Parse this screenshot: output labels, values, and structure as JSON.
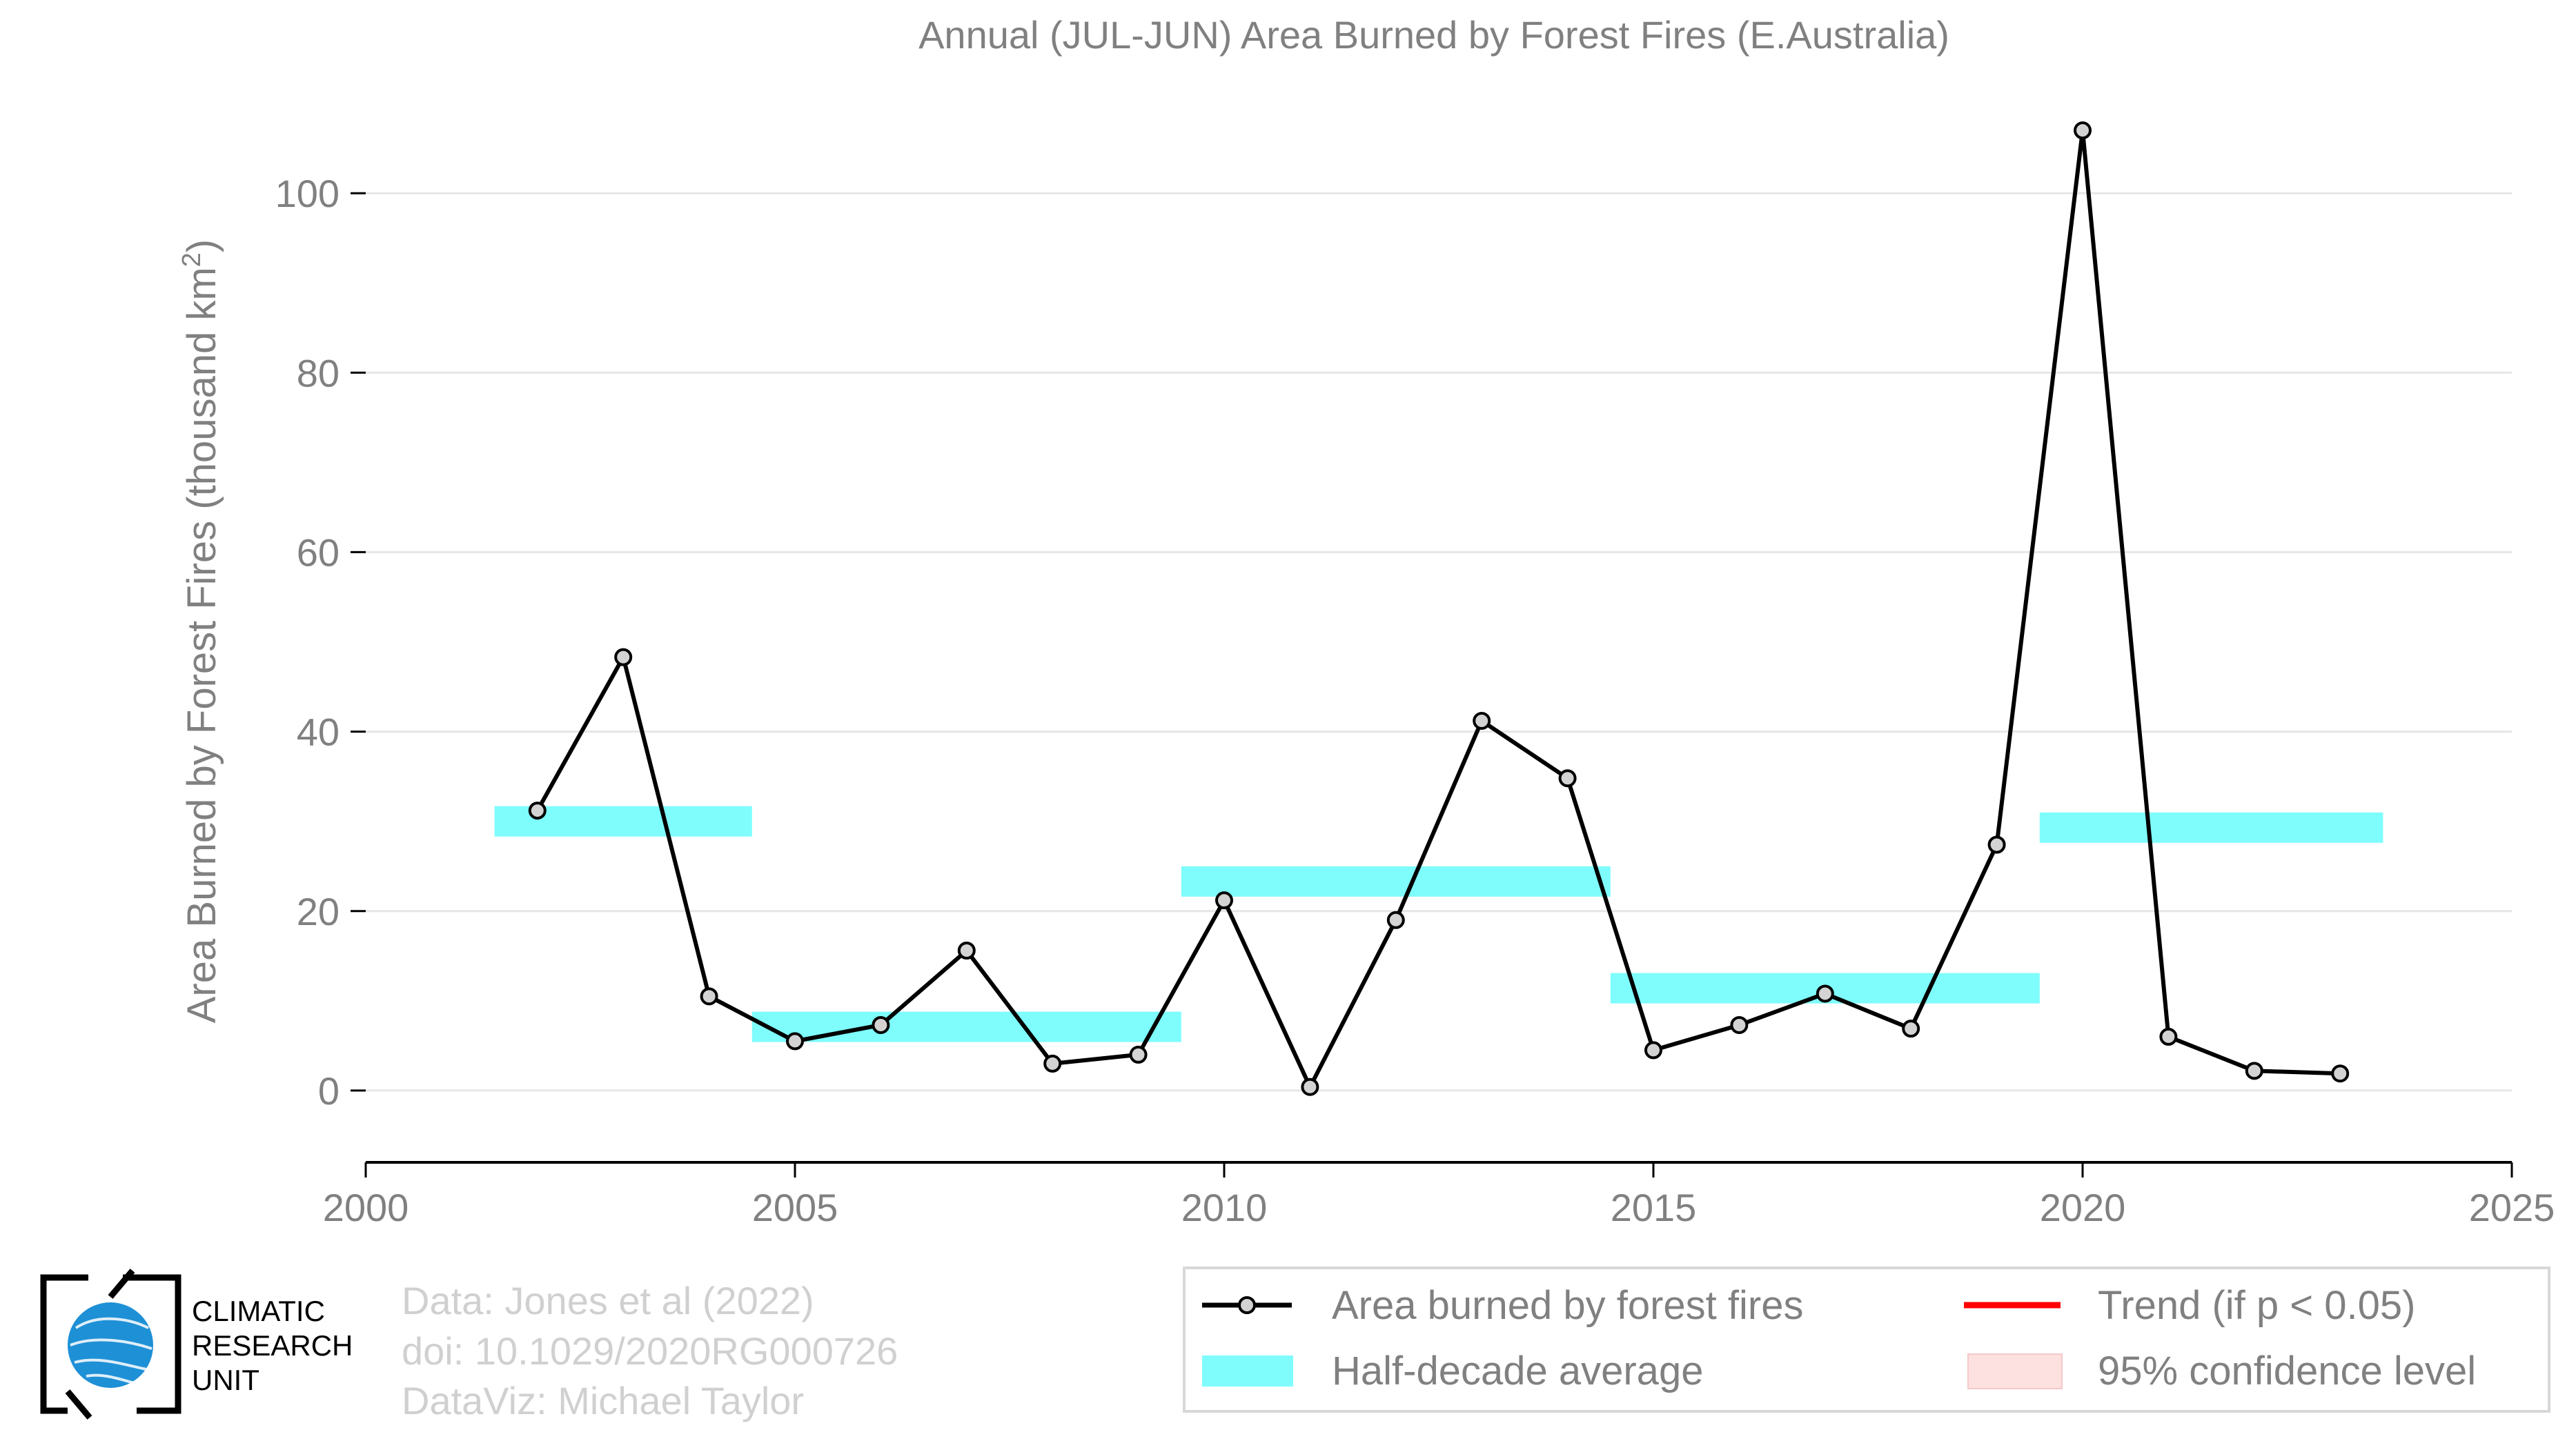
{
  "chart_data": {
    "type": "line",
    "title": "Annual (JUL-JUN) Area Burned by Forest Fires (E.Australia)",
    "ylabel": "Area Burned by Forest Fires (thousand km",
    "ylabel_sup": "2",
    "ylabel_close": ")",
    "xlabel": "",
    "xlim": [
      2000,
      2025
    ],
    "ylim": [
      -8,
      110
    ],
    "xticks": [
      2000,
      2005,
      2010,
      2015,
      2020,
      2025
    ],
    "yticks": [
      0,
      20,
      40,
      60,
      80,
      100
    ],
    "grid": "horizontal",
    "legend_position": "bottom-right",
    "series": [
      {
        "name": "Area burned by forest fires",
        "style": "line-markers",
        "color": "#000000",
        "marker_fill": "#d3d3d3",
        "x": [
          2002,
          2003,
          2004,
          2005,
          2006,
          2007,
          2008,
          2009,
          2010,
          2011,
          2012,
          2013,
          2014,
          2015,
          2016,
          2017,
          2018,
          2019,
          2020,
          2021,
          2022,
          2023
        ],
        "y": [
          31.2,
          48.3,
          10.5,
          5.5,
          7.3,
          15.6,
          3.0,
          4.0,
          21.2,
          0.4,
          19.0,
          41.2,
          34.8,
          4.5,
          7.3,
          10.8,
          6.9,
          27.4,
          107.0,
          6.0,
          2.2,
          1.9
        ]
      },
      {
        "name": "Half-decade average",
        "style": "bands",
        "color": "#7ffdfd",
        "segments": [
          {
            "x0": 2001.5,
            "x1": 2004.5,
            "y": 30.0
          },
          {
            "x0": 2004.5,
            "x1": 2009.5,
            "y": 7.1
          },
          {
            "x0": 2009.5,
            "x1": 2014.5,
            "y": 23.3
          },
          {
            "x0": 2014.5,
            "x1": 2019.5,
            "y": 11.4
          },
          {
            "x0": 2019.5,
            "x1": 2023.5,
            "y": 29.3
          }
        ]
      }
    ],
    "legend": [
      {
        "label": "Area burned by forest fires",
        "kind": "line-marker",
        "color": "#000000"
      },
      {
        "label": "Trend (if p < 0.05)",
        "kind": "line",
        "color": "#ff0000"
      },
      {
        "label": "Half-decade average",
        "kind": "patch",
        "color": "#7ffdfd"
      },
      {
        "label": "95% confidence level",
        "kind": "patch",
        "color": "#fde0e0"
      }
    ]
  },
  "credits": {
    "line1": "Data: Jones et al (2022)",
    "line2": "doi: 10.1029/2020RG000726",
    "line3": "DataViz: Michael Taylor"
  },
  "logo": {
    "line1": "CLIMATIC",
    "line2": "RESEARCH",
    "line3": "UNIT"
  },
  "colors": {
    "axis_text": "#808080",
    "grid": "#e6e6e6",
    "credits_text": "#d0d0d0",
    "logo_blue": "#1e90d6"
  }
}
